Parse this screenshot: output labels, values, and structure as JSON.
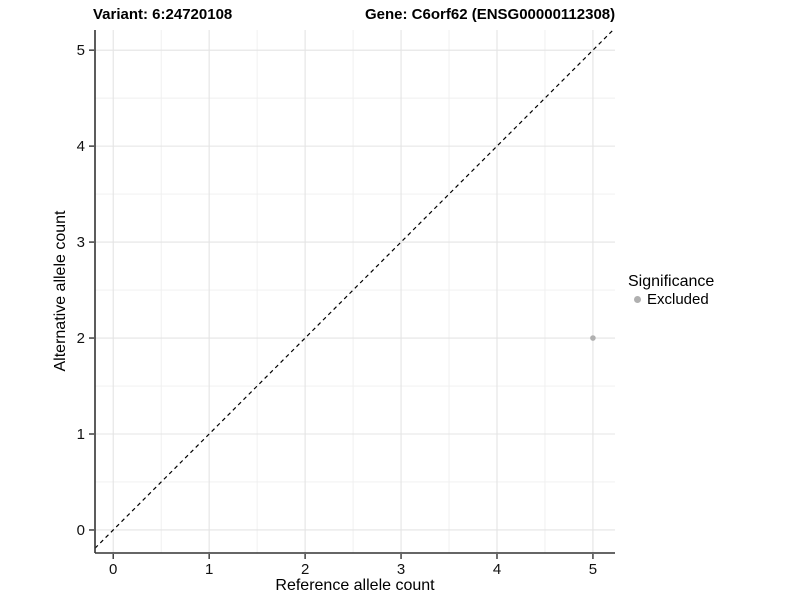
{
  "chart_data": {
    "type": "scatter",
    "titles": {
      "left": "Variant: 6:24720108",
      "right": "Gene: C6orf62 (ENSG00000112308)"
    },
    "xlabel": "Reference allele count",
    "ylabel": "Alternative allele count",
    "xlim": [
      -0.19,
      5.23
    ],
    "ylim": [
      -0.24,
      5.21
    ],
    "xticks": [
      0,
      1,
      2,
      3,
      4,
      5
    ],
    "yticks": [
      0,
      1,
      2,
      3,
      4,
      5
    ],
    "grid": "major at integers, minor at 0.5 steps, light gray on white panel",
    "points": [
      {
        "x": 5,
        "y": 2,
        "significance": "Excluded"
      }
    ],
    "reference_line": {
      "kind": "identity y=x",
      "style": "dashed",
      "color": "#000000"
    },
    "legend": {
      "title": "Significance",
      "position": "right",
      "entries": [
        {
          "label": "Excluded",
          "color": "#b0b0b0"
        }
      ]
    },
    "colors": {
      "point": "#b0b0b0",
      "grid_major": "#e4e4e4",
      "grid_minor": "#efefef",
      "axis": "#333333",
      "tick_text": "#111111",
      "title_text": "#000000",
      "background": "#ffffff"
    }
  }
}
